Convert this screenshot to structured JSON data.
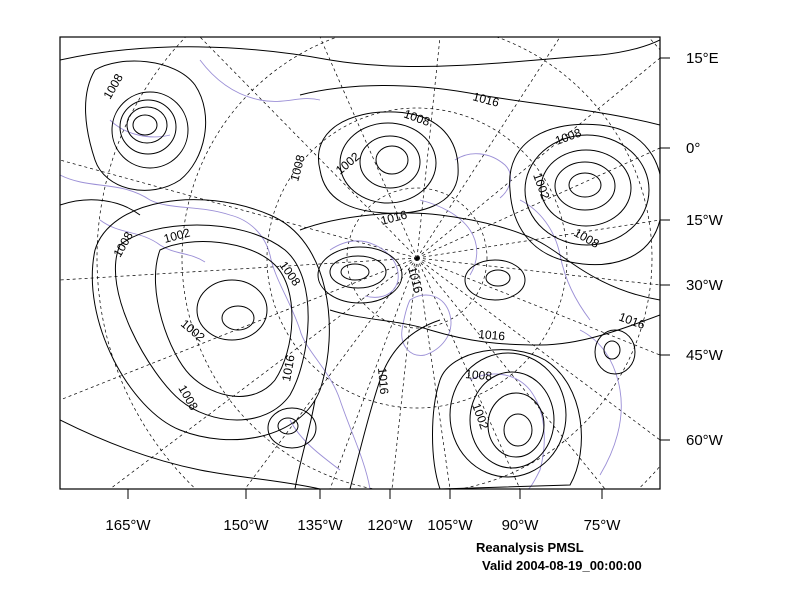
{
  "caption": {
    "title": "Reanalysis PMSL",
    "valid": "Valid 2004-08-19_00:00:00"
  },
  "bottom_axis_labels": [
    "165°W",
    "150°W",
    "135°W",
    "120°W",
    "105°W",
    "90°W",
    "75°W"
  ],
  "right_axis_labels": [
    "15°E",
    "0°",
    "15°W",
    "30°W",
    "45°W",
    "60°W"
  ],
  "contour_labels": {
    "l1008_a": "1008",
    "l1016_a": "1016",
    "l1008_b": "1008",
    "l1002_a": "1002",
    "l1008_c": "1008",
    "l1008_d": "1008",
    "l1002_b": "1002",
    "l1008_e": "1008",
    "l1016_b": "1016",
    "l1008_f": "1008",
    "l1002_c": "1002",
    "l1008_g": "1008",
    "l1016_c": "1016",
    "l1002_d": "1002",
    "l1008_h": "1008",
    "l1016_d": "1016",
    "l1016_e": "1016",
    "l1016_f": "1016",
    "l1008_i": "1008",
    "l1002_e": "1002",
    "l1016_g": "1016"
  },
  "colors": {
    "contour": "#000000",
    "coastline": "#9b8fd6",
    "grid": "#000000",
    "frame": "#000000"
  }
}
